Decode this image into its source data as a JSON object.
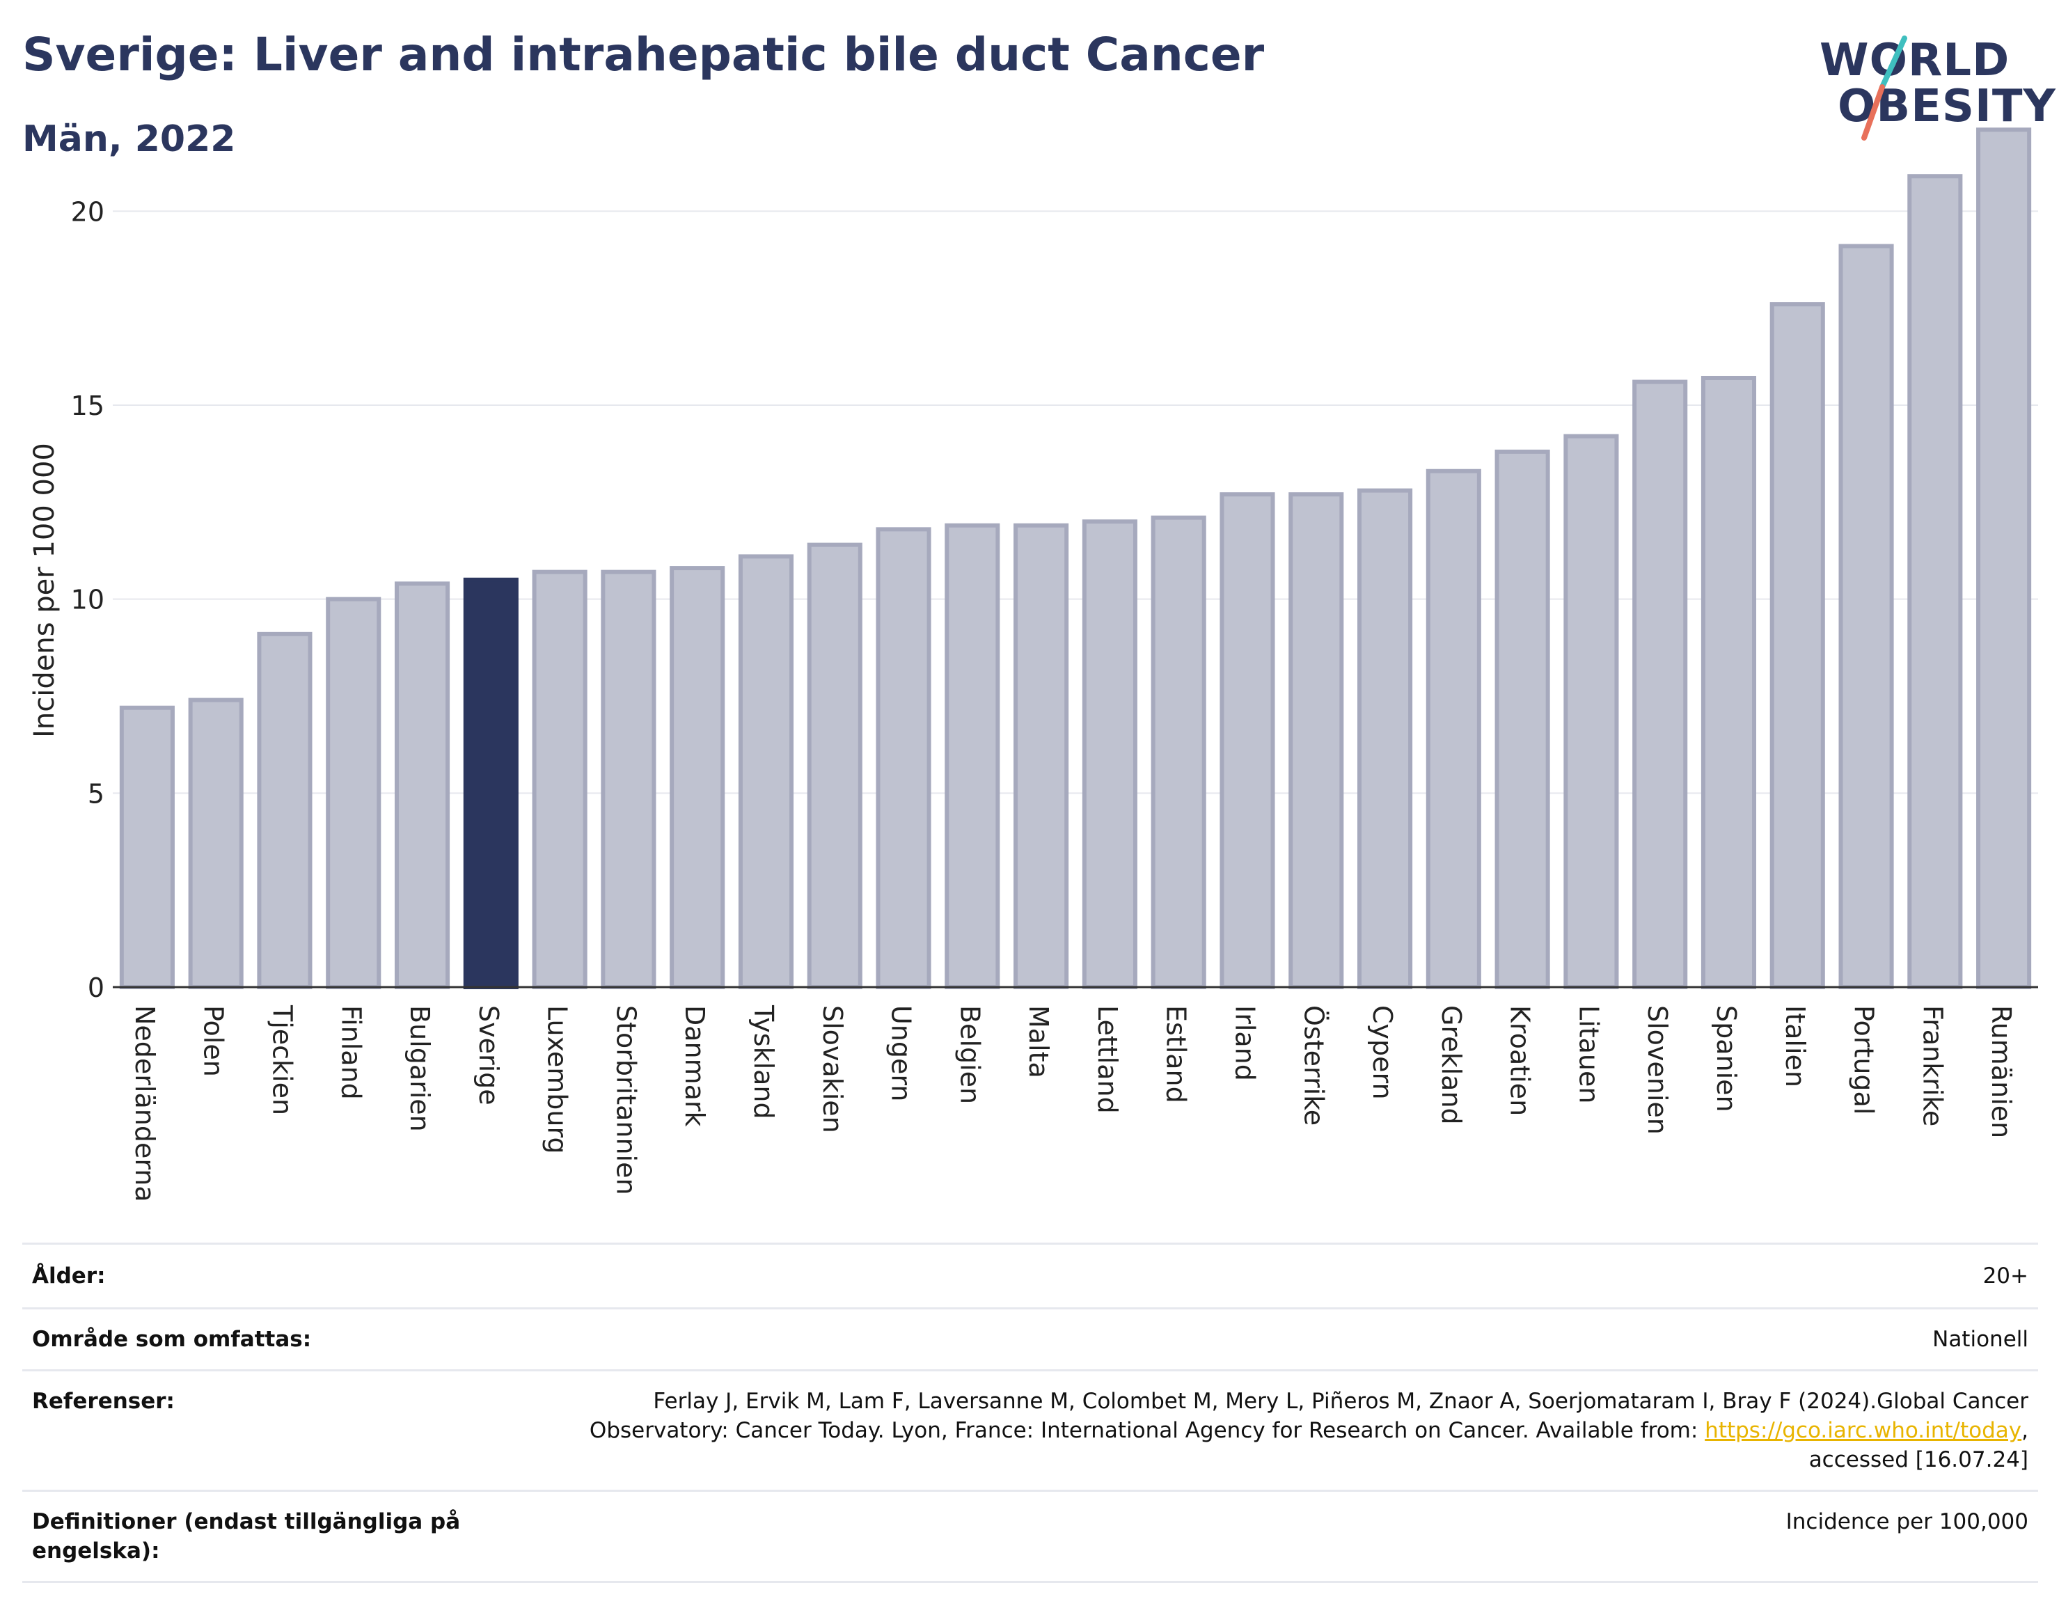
{
  "title": "Sverige: Liver and intrahepatic bile duct Cancer",
  "subtitle": "Män, 2022",
  "logo": {
    "line1": "WORLD",
    "line2": "OBESITY"
  },
  "colors": {
    "bar": "#bfc2d0",
    "bar_stroke": "#a6a9bd",
    "highlight": "#2b365e",
    "grid": "#e6e8ee",
    "axis": "#333333"
  },
  "chart_data": {
    "type": "bar",
    "ylabel": "Incidens per 100 000",
    "ylim": [
      0,
      22.5
    ],
    "yticks": [
      0,
      5,
      10,
      15,
      20
    ],
    "highlight": "Sverige",
    "grid": true,
    "categories": [
      "Nederländerna",
      "Polen",
      "Tjeckien",
      "Finland",
      "Bulgarien",
      "Sverige",
      "Luxemburg",
      "Storbritannien",
      "Danmark",
      "Tyskland",
      "Slovakien",
      "Ungern",
      "Belgien",
      "Malta",
      "Lettland",
      "Estland",
      "Irland",
      "Österrike",
      "Cypern",
      "Grekland",
      "Kroatien",
      "Litauen",
      "Slovenien",
      "Spanien",
      "Italien",
      "Portugal",
      "Frankrike",
      "Rumänien"
    ],
    "values": [
      7.2,
      7.4,
      9.1,
      10.0,
      10.4,
      10.5,
      10.7,
      10.7,
      10.8,
      11.1,
      11.4,
      11.8,
      11.9,
      11.9,
      12.0,
      12.1,
      12.7,
      12.7,
      12.8,
      13.3,
      13.8,
      14.2,
      15.6,
      15.7,
      17.6,
      19.1,
      20.9,
      22.1
    ]
  },
  "info": {
    "age_label": "Ålder:",
    "age_value": "20+",
    "area_label": "Område som omfattas:",
    "area_value": "Nationell",
    "ref_label": "Referenser:",
    "ref_text_1": "Ferlay J, Ervik M, Lam F, Laversanne M, Colombet M, Mery L, Piñeros M, Znaor A, Soerjomataram I, Bray F (2024).Global Cancer",
    "ref_text_2": "Observatory: Cancer Today. Lyon, France: International Agency for Research on Cancer. Available from: ",
    "ref_link": "https://gco.iarc.who.int/today",
    "ref_text_3": ",",
    "ref_text_4": "accessed [16.07.24]",
    "def_label": "Definitioner (endast tillgängliga på engelska):",
    "def_value": "Incidence per 100,000"
  }
}
